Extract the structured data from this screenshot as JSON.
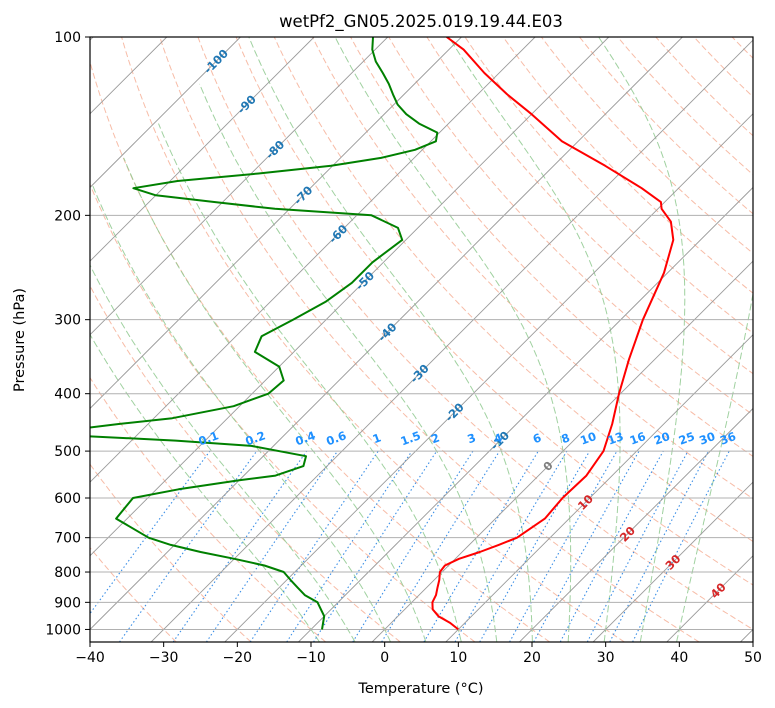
{
  "chart_data": {
    "type": "skew-t",
    "title": "wetPf2_GN05.2025.019.19.44.E03",
    "xlabel": "Temperature (°C)",
    "ylabel": "Pressure (hPa)",
    "xlim": [
      -40,
      50
    ],
    "ylim": [
      1050,
      100
    ],
    "y_scale": "log",
    "grid": true,
    "x_ticks": [
      -40,
      -30,
      -20,
      -10,
      0,
      10,
      20,
      30,
      40,
      50
    ],
    "x_tick_labels": [
      "−40",
      "−30",
      "−20",
      "−10",
      "0",
      "10",
      "20",
      "30",
      "40",
      "50"
    ],
    "y_ticks": [
      1000,
      900,
      800,
      700,
      600,
      500,
      400,
      300,
      200,
      100
    ],
    "y_tick_labels": [
      "1000",
      "900",
      "800",
      "700",
      "600",
      "500",
      "400",
      "300",
      "200",
      "100"
    ],
    "series": [
      {
        "role": "temperature",
        "color": "#ff0000",
        "pressure": [
          1000,
          975,
          950,
          925,
          900,
          875,
          850,
          825,
          800,
          780,
          760,
          740,
          720,
          700,
          650,
          600,
          550,
          500,
          450,
          400,
          350,
          300,
          250,
          220,
          205,
          195,
          190,
          180,
          165,
          150,
          135,
          125,
          115,
          105,
          100
        ],
        "temperature": [
          10,
          8,
          5.5,
          3.8,
          2.8,
          2.3,
          1.5,
          0.7,
          -0.3,
          -0.5,
          0.5,
          2.4,
          4,
          5.5,
          6.7,
          6.3,
          6.5,
          5.5,
          3,
          -0.2,
          -3.5,
          -7,
          -10.5,
          -13.7,
          -16.5,
          -19.5,
          -20.5,
          -25,
          -33,
          -42.2,
          -50,
          -56,
          -62,
          -68,
          -72
        ]
      },
      {
        "role": "dewpoint",
        "color": "#008000",
        "pressure": [
          1000,
          950,
          900,
          875,
          850,
          825,
          800,
          780,
          760,
          740,
          720,
          700,
          650,
          600,
          580,
          560,
          550,
          530,
          510,
          490,
          480,
          470,
          460,
          450,
          440,
          420,
          400,
          380,
          360,
          340,
          320,
          300,
          280,
          260,
          240,
          220,
          210,
          200,
          195,
          190,
          185,
          180,
          175,
          170,
          165,
          160,
          155,
          150,
          145,
          140,
          135,
          130,
          125,
          120,
          115,
          110,
          105,
          100
        ],
        "dewpoint": [
          -8.5,
          -10,
          -12.8,
          -15.5,
          -17.5,
          -19.5,
          -21.5,
          -25,
          -30,
          -35.5,
          -40.5,
          -44.5,
          -51.5,
          -52,
          -47,
          -40,
          -35.7,
          -33.2,
          -34.2,
          -43,
          -54,
          -69.5,
          -69.5,
          -64,
          -57.5,
          -50.8,
          -47.8,
          -47.5,
          -50,
          -55.3,
          -56.5,
          -54.5,
          -52.5,
          -51.5,
          -51.5,
          -50.5,
          -52.7,
          -58,
          -72,
          -81,
          -90,
          -94,
          -89,
          -79,
          -70.2,
          -64.5,
          -61,
          -59.3,
          -60.3,
          -64,
          -67,
          -69.5,
          -71.5,
          -73.5,
          -75.8,
          -78.3,
          -80.4,
          -82
        ]
      }
    ],
    "isotherms": [
      -120,
      -110,
      -100,
      -90,
      -80,
      -70,
      -60,
      -50,
      -40,
      -30,
      -20,
      -10,
      0,
      10,
      20,
      30,
      40,
      50
    ],
    "dry_adiabats_theta_c": [
      -30,
      -20,
      -10,
      0,
      10,
      20,
      30,
      40,
      50,
      60,
      70,
      80,
      90,
      100,
      110,
      120,
      130,
      140,
      150,
      160,
      170,
      180,
      190
    ],
    "moist_adiabats_c": [
      -10,
      -5,
      0,
      5,
      10,
      15,
      20,
      25,
      30,
      35,
      40
    ],
    "mixing_ratios_gkg": [
      0.1,
      0.2,
      0.4,
      0.6,
      1,
      1.5,
      2,
      3,
      4,
      6,
      8,
      10,
      13,
      16,
      20,
      25,
      30,
      36
    ],
    "mixing_ratio_labels": [
      "0.1",
      "0.2",
      "0.4",
      "0.6",
      "1",
      "1.5",
      "2",
      "3",
      "4",
      "6",
      "8",
      "10",
      "13",
      "16",
      "20",
      "25",
      "30",
      "36"
    ],
    "cold_temp_labels": [
      "-100",
      "-90",
      "-80",
      "-70",
      "-60",
      "-50",
      "-40",
      "-30",
      "-20",
      "-10"
    ],
    "cold_temp_label_pressures": [
      110,
      130,
      155,
      185,
      215,
      258,
      315,
      370,
      430,
      480
    ],
    "warm_temp_labels": [
      "0",
      "10",
      "20",
      "30",
      "40"
    ],
    "warm_temp_label_pressures": [
      530,
      610,
      690,
      770,
      860
    ],
    "colors": {
      "temperature": "#ff0000",
      "dewpoint": "#008000",
      "grid": "#b0b0b0",
      "isotherm": "#9a9a9a",
      "dry_adiabat": "#f4a58a",
      "moist_adiabat": "#8fc98f",
      "mixing_ratio": "#3a8ee6",
      "cold_label": "#1f77b4",
      "warm_label": "#d62728",
      "zero_label": "#7f7f7f",
      "mixing_label": "#1e90ff"
    }
  }
}
